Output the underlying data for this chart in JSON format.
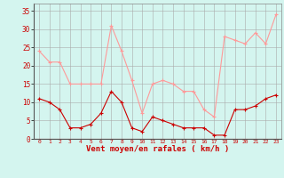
{
  "hours": [
    0,
    1,
    2,
    3,
    4,
    5,
    6,
    7,
    8,
    9,
    10,
    11,
    12,
    13,
    14,
    15,
    16,
    17,
    18,
    19,
    20,
    21,
    22,
    23
  ],
  "wind_avg": [
    11,
    10,
    8,
    3,
    3,
    4,
    7,
    13,
    10,
    3,
    2,
    6,
    5,
    4,
    3,
    3,
    3,
    1,
    1,
    8,
    8,
    9,
    11,
    12
  ],
  "wind_gust": [
    24,
    21,
    21,
    15,
    15,
    15,
    15,
    31,
    24,
    16,
    7,
    15,
    16,
    15,
    13,
    13,
    8,
    6,
    28,
    27,
    26,
    29,
    26,
    34
  ],
  "color_avg": "#cc0000",
  "color_gust": "#ff9999",
  "bg_color": "#d4f5ef",
  "grid_color": "#aaaaaa",
  "xlabel": "Vent moyen/en rafales ( km/h )",
  "xlabel_color": "#cc0000",
  "tick_color": "#cc0000",
  "yticks": [
    0,
    5,
    10,
    15,
    20,
    25,
    30,
    35
  ],
  "ylim": [
    0,
    37
  ],
  "xlim": [
    -0.5,
    23.5
  ]
}
